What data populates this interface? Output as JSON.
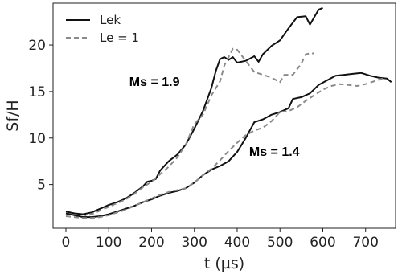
{
  "chart_data": {
    "type": "line",
    "title": "",
    "xlabel": "t (µs)",
    "ylabel": "Sf/H",
    "xlim": [
      -30,
      770
    ],
    "ylim": [
      0.3,
      24.5
    ],
    "xticks": [
      0,
      100,
      200,
      300,
      400,
      500,
      600,
      700
    ],
    "yticks": [
      5,
      10,
      15,
      20
    ],
    "grid": false,
    "legend": {
      "placement": "top-left",
      "entries": [
        {
          "label": "Lek",
          "style": "solid",
          "color": "#111111"
        },
        {
          "label": "Le = 1",
          "style": "dashed",
          "color": "#8a8a8a"
        }
      ]
    },
    "annotations": [
      {
        "text": "Ms = 1.9",
        "x": 148,
        "y": 15.6
      },
      {
        "text": "Ms = 1.4",
        "x": 428,
        "y": 8.1
      }
    ],
    "series": [
      {
        "name": "Lek",
        "case": "Ms = 1.9",
        "style": "solid",
        "color": "#111111",
        "points": [
          [
            0,
            2.1
          ],
          [
            20,
            1.9
          ],
          [
            40,
            1.8
          ],
          [
            60,
            2.0
          ],
          [
            80,
            2.4
          ],
          [
            100,
            2.8
          ],
          [
            120,
            3.1
          ],
          [
            140,
            3.5
          ],
          [
            160,
            4.1
          ],
          [
            180,
            4.8
          ],
          [
            190,
            5.3
          ],
          [
            200,
            5.4
          ],
          [
            210,
            5.6
          ],
          [
            220,
            6.5
          ],
          [
            240,
            7.5
          ],
          [
            260,
            8.2
          ],
          [
            280,
            9.3
          ],
          [
            300,
            11.0
          ],
          [
            320,
            12.9
          ],
          [
            340,
            15.4
          ],
          [
            350,
            17.2
          ],
          [
            360,
            18.5
          ],
          [
            370,
            18.7
          ],
          [
            380,
            18.4
          ],
          [
            390,
            18.7
          ],
          [
            400,
            18.1
          ],
          [
            420,
            18.3
          ],
          [
            440,
            18.8
          ],
          [
            450,
            18.2
          ],
          [
            460,
            19.0
          ],
          [
            480,
            19.9
          ],
          [
            500,
            20.5
          ],
          [
            520,
            21.8
          ],
          [
            540,
            23.0
          ],
          [
            560,
            23.1
          ],
          [
            570,
            22.2
          ],
          [
            590,
            23.8
          ],
          [
            600,
            24.0
          ]
        ]
      },
      {
        "name": "Le = 1",
        "case": "Ms = 1.9",
        "style": "dashed",
        "color": "#8a8a8a",
        "points": [
          [
            0,
            1.9
          ],
          [
            20,
            1.7
          ],
          [
            40,
            1.5
          ],
          [
            60,
            1.8
          ],
          [
            80,
            2.2
          ],
          [
            100,
            2.6
          ],
          [
            120,
            3.0
          ],
          [
            140,
            3.4
          ],
          [
            160,
            4.0
          ],
          [
            180,
            4.7
          ],
          [
            200,
            5.3
          ],
          [
            220,
            6.1
          ],
          [
            240,
            6.9
          ],
          [
            260,
            7.9
          ],
          [
            280,
            9.3
          ],
          [
            300,
            11.5
          ],
          [
            320,
            12.5
          ],
          [
            340,
            14.6
          ],
          [
            360,
            16.1
          ],
          [
            370,
            17.8
          ],
          [
            380,
            18.7
          ],
          [
            390,
            19.6
          ],
          [
            400,
            19.5
          ],
          [
            410,
            18.9
          ],
          [
            420,
            18.3
          ],
          [
            440,
            17.1
          ],
          [
            460,
            16.8
          ],
          [
            480,
            16.5
          ],
          [
            500,
            16.0
          ],
          [
            510,
            16.8
          ],
          [
            530,
            16.8
          ],
          [
            550,
            18.0
          ],
          [
            560,
            19.0
          ],
          [
            570,
            19.1
          ],
          [
            580,
            19.1
          ]
        ]
      },
      {
        "name": "Lek",
        "case": "Ms = 1.4",
        "style": "solid",
        "color": "#111111",
        "points": [
          [
            0,
            1.9
          ],
          [
            20,
            1.7
          ],
          [
            40,
            1.5
          ],
          [
            60,
            1.5
          ],
          [
            80,
            1.6
          ],
          [
            100,
            1.8
          ],
          [
            120,
            2.1
          ],
          [
            140,
            2.4
          ],
          [
            160,
            2.7
          ],
          [
            180,
            3.1
          ],
          [
            200,
            3.4
          ],
          [
            220,
            3.8
          ],
          [
            240,
            4.1
          ],
          [
            260,
            4.3
          ],
          [
            280,
            4.6
          ],
          [
            300,
            5.2
          ],
          [
            320,
            6.0
          ],
          [
            340,
            6.6
          ],
          [
            360,
            7.0
          ],
          [
            380,
            7.5
          ],
          [
            400,
            8.5
          ],
          [
            420,
            10.0
          ],
          [
            440,
            11.7
          ],
          [
            460,
            12.0
          ],
          [
            480,
            12.5
          ],
          [
            500,
            12.8
          ],
          [
            520,
            13.2
          ],
          [
            530,
            14.2
          ],
          [
            550,
            14.4
          ],
          [
            570,
            14.8
          ],
          [
            590,
            15.7
          ],
          [
            610,
            16.2
          ],
          [
            630,
            16.7
          ],
          [
            650,
            16.8
          ],
          [
            670,
            16.9
          ],
          [
            690,
            17.0
          ],
          [
            710,
            16.7
          ],
          [
            730,
            16.5
          ],
          [
            750,
            16.4
          ],
          [
            760,
            16.0
          ]
        ]
      },
      {
        "name": "Le = 1",
        "case": "Ms = 1.4",
        "style": "dashed",
        "color": "#8a8a8a",
        "points": [
          [
            0,
            1.6
          ],
          [
            20,
            1.5
          ],
          [
            40,
            1.4
          ],
          [
            60,
            1.4
          ],
          [
            80,
            1.5
          ],
          [
            100,
            1.7
          ],
          [
            120,
            2.0
          ],
          [
            140,
            2.3
          ],
          [
            160,
            2.7
          ],
          [
            180,
            3.1
          ],
          [
            200,
            3.5
          ],
          [
            220,
            3.9
          ],
          [
            240,
            4.2
          ],
          [
            260,
            4.4
          ],
          [
            280,
            4.6
          ],
          [
            300,
            5.2
          ],
          [
            320,
            6.0
          ],
          [
            340,
            6.7
          ],
          [
            360,
            7.6
          ],
          [
            380,
            8.6
          ],
          [
            400,
            9.5
          ],
          [
            420,
            10.3
          ],
          [
            440,
            10.8
          ],
          [
            460,
            11.1
          ],
          [
            480,
            11.8
          ],
          [
            500,
            12.8
          ],
          [
            520,
            12.9
          ],
          [
            540,
            13.3
          ],
          [
            560,
            14.0
          ],
          [
            580,
            14.6
          ],
          [
            600,
            15.2
          ],
          [
            620,
            15.6
          ],
          [
            640,
            15.8
          ],
          [
            660,
            15.7
          ],
          [
            680,
            15.6
          ],
          [
            700,
            15.8
          ],
          [
            720,
            16.1
          ],
          [
            740,
            16.4
          ]
        ]
      }
    ]
  }
}
